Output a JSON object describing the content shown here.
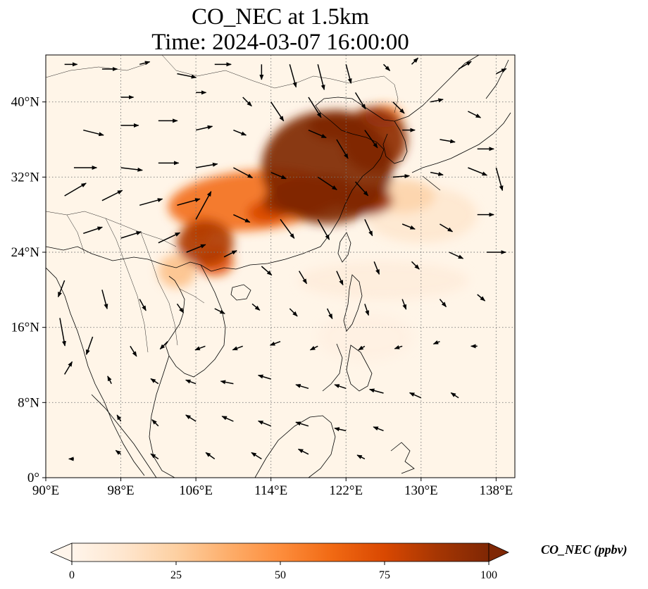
{
  "title": {
    "line1": "CO_NEC at 1.5km",
    "line2": "Time: 2024-03-07 16:00:00"
  },
  "map": {
    "lon_range": [
      90,
      140
    ],
    "lat_range": [
      0,
      45
    ],
    "lon_ticks": [
      {
        "value": 90,
        "label": "90°E"
      },
      {
        "value": 98,
        "label": "98°E"
      },
      {
        "value": 106,
        "label": "106°E"
      },
      {
        "value": 114,
        "label": "114°E"
      },
      {
        "value": 122,
        "label": "122°E"
      },
      {
        "value": 130,
        "label": "130°E"
      },
      {
        "value": 138,
        "label": "138°E"
      }
    ],
    "lat_ticks": [
      {
        "value": 0,
        "label": "0°"
      },
      {
        "value": 8,
        "label": "8°N"
      },
      {
        "value": 16,
        "label": "16°N"
      },
      {
        "value": 24,
        "label": "24°N"
      },
      {
        "value": 32,
        "label": "32°N"
      },
      {
        "value": 40,
        "label": "40°N"
      }
    ],
    "gridlines": "dotted",
    "background_color": "#fff5e8",
    "plumes": [
      {
        "lon": 112,
        "lat": 29.5,
        "rx": 9,
        "ry": 3.2,
        "value": 60,
        "rot": -5
      },
      {
        "lon": 120,
        "lat": 33,
        "rx": 7,
        "ry": 6,
        "value": 100,
        "rot": 0
      },
      {
        "lon": 121,
        "lat": 37.5,
        "rx": 3,
        "ry": 1.6,
        "value": 100,
        "rot": 0
      },
      {
        "lon": 125,
        "lat": 36,
        "rx": 3.5,
        "ry": 3.5,
        "value": 95,
        "rot": 0
      },
      {
        "lon": 118,
        "lat": 30,
        "rx": 5,
        "ry": 2,
        "value": 95,
        "rot": -10
      },
      {
        "lon": 124,
        "lat": 29.5,
        "rx": 3,
        "ry": 1.6,
        "value": 90,
        "rot": 0
      },
      {
        "lon": 107,
        "lat": 25,
        "rx": 3,
        "ry": 2.5,
        "value": 85,
        "rot": 0
      },
      {
        "lon": 108,
        "lat": 23,
        "rx": 2,
        "ry": 1.5,
        "value": 70,
        "rot": 0
      },
      {
        "lon": 106.5,
        "lat": 26.5,
        "rx": 1.2,
        "ry": 1.6,
        "value": 60,
        "rot": 0
      },
      {
        "lon": 113.5,
        "lat": 28.2,
        "rx": 2,
        "ry": 1.2,
        "value": 75,
        "rot": 0
      },
      {
        "lon": 126,
        "lat": 38.5,
        "rx": 2,
        "ry": 1.2,
        "value": 55,
        "rot": 0
      },
      {
        "lon": 128,
        "lat": 30,
        "rx": 3.5,
        "ry": 1.8,
        "value": 22,
        "rot": 0
      },
      {
        "lon": 130,
        "lat": 28,
        "rx": 6,
        "ry": 3,
        "value": 12,
        "rot": 0
      },
      {
        "lon": 104,
        "lat": 22,
        "rx": 2,
        "ry": 1.8,
        "value": 30,
        "rot": 0
      },
      {
        "lon": 126,
        "lat": 21,
        "rx": 9,
        "ry": 2,
        "value": 7,
        "rot": 0
      },
      {
        "lon": 124,
        "lat": 15,
        "rx": 5,
        "ry": 2.5,
        "value": 4,
        "rot": 0
      }
    ],
    "wind_vectors": [
      [
        92,
        44,
        1,
        0
      ],
      [
        96,
        43.5,
        1.2,
        0
      ],
      [
        100,
        44,
        0.8,
        0.2
      ],
      [
        104,
        43,
        1.5,
        -0.3
      ],
      [
        108,
        44,
        1.3,
        0
      ],
      [
        113,
        44,
        0,
        -1.2
      ],
      [
        116,
        44,
        0.5,
        -1.8
      ],
      [
        119,
        44,
        0.5,
        -2
      ],
      [
        122,
        44,
        0.4,
        -1.5
      ],
      [
        126,
        44,
        0.5,
        -0.5
      ],
      [
        129,
        44,
        0.5,
        0.5
      ],
      [
        134,
        43.5,
        1,
        0.6
      ],
      [
        138,
        43,
        0.8,
        0.4
      ],
      [
        98,
        40.5,
        1,
        0
      ],
      [
        106,
        41,
        0.8,
        0
      ],
      [
        111,
        40.5,
        0.7,
        -0.7
      ],
      [
        114,
        40,
        1,
        -1.5
      ],
      [
        118,
        40.5,
        1,
        -1.6
      ],
      [
        123,
        41,
        0.8,
        -1.3
      ],
      [
        127,
        40,
        0.9,
        -0.9
      ],
      [
        131,
        40,
        1,
        0.2
      ],
      [
        135,
        39,
        1,
        -0.5
      ],
      [
        94,
        37,
        1.6,
        -0.4
      ],
      [
        98,
        37.5,
        1.4,
        0
      ],
      [
        102,
        38,
        1.5,
        0
      ],
      [
        106,
        37,
        1.3,
        0.3
      ],
      [
        110,
        37,
        1,
        -0.4
      ],
      [
        118,
        37,
        1.4,
        -0.6
      ],
      [
        121,
        36,
        0.9,
        -1.5
      ],
      [
        124,
        37,
        1,
        -1.4
      ],
      [
        128,
        37,
        1,
        0
      ],
      [
        132,
        36,
        1.2,
        -0.2
      ],
      [
        136,
        35,
        1.3,
        0
      ],
      [
        93,
        33,
        1.8,
        0
      ],
      [
        98,
        33,
        1.7,
        -0.2
      ],
      [
        102,
        33.5,
        1.6,
        0
      ],
      [
        106,
        33,
        1.7,
        0.3
      ],
      [
        110,
        33,
        1.5,
        -0.8
      ],
      [
        114,
        32.5,
        1.2,
        -0.5
      ],
      [
        119,
        32,
        1.5,
        -1
      ],
      [
        123,
        31.5,
        1,
        -1.1
      ],
      [
        127,
        32,
        1.3,
        0.1
      ],
      [
        131,
        32.5,
        1,
        -0.2
      ],
      [
        135,
        33,
        1.5,
        -0.6
      ],
      [
        138,
        33,
        0.5,
        -1.8
      ],
      [
        92,
        30,
        1.7,
        1
      ],
      [
        96,
        29.5,
        1.6,
        0.8
      ],
      [
        100,
        29,
        1.8,
        0.5
      ],
      [
        104,
        29,
        1.8,
        0.5
      ],
      [
        106,
        27.5,
        1.2,
        2.2
      ],
      [
        110,
        28,
        1.3,
        -0.6
      ],
      [
        115,
        27.5,
        1.1,
        -1.5
      ],
      [
        119,
        27.5,
        0.9,
        -1.6
      ],
      [
        124,
        27.5,
        0.6,
        -1.3
      ],
      [
        128,
        27,
        1,
        -0.4
      ],
      [
        132,
        27,
        1,
        -0.6
      ],
      [
        136,
        28,
        1.3,
        0
      ],
      [
        94,
        26,
        1.5,
        0.5
      ],
      [
        98,
        25.5,
        1.6,
        0.5
      ],
      [
        102,
        25,
        1.7,
        0.8
      ],
      [
        105,
        24,
        1.5,
        0.6
      ],
      [
        109,
        23.5,
        1,
        0.5
      ],
      [
        113,
        22.5,
        0.8,
        -0.7
      ],
      [
        117,
        22,
        0.6,
        -1
      ],
      [
        121,
        22,
        0.5,
        -1.1
      ],
      [
        125,
        23,
        0.4,
        -1
      ],
      [
        129,
        23,
        0.6,
        -0.6
      ],
      [
        133,
        24,
        1.1,
        -0.5
      ],
      [
        137,
        24,
        1.5,
        0
      ],
      [
        92,
        21,
        -0.5,
        -1.3
      ],
      [
        96,
        20,
        0.4,
        -1.5
      ],
      [
        100,
        19,
        0.5,
        -0.9
      ],
      [
        104,
        18.5,
        0.5,
        -0.7
      ],
      [
        108,
        18,
        0.8,
        -0.4
      ],
      [
        112,
        18.5,
        0.6,
        -0.5
      ],
      [
        116,
        18,
        0.6,
        -0.6
      ],
      [
        120,
        18,
        0.4,
        -0.8
      ],
      [
        124,
        18.5,
        0.3,
        -0.9
      ],
      [
        128,
        19,
        0.3,
        -0.8
      ],
      [
        132,
        19,
        0.5,
        -0.6
      ],
      [
        136,
        19.5,
        0.6,
        -0.5
      ],
      [
        91.5,
        17,
        0.4,
        -2.2
      ],
      [
        95,
        15,
        -0.5,
        -1.4
      ],
      [
        99,
        14,
        0.5,
        -0.8
      ],
      [
        103,
        14.5,
        -0.6,
        -0.6
      ],
      [
        107,
        14,
        -0.8,
        -0.3
      ],
      [
        111,
        14,
        -0.8,
        -0.3
      ],
      [
        115,
        14.5,
        -0.8,
        -0.3
      ],
      [
        119,
        14,
        -0.6,
        -0.3
      ],
      [
        124,
        14,
        -0.5,
        -0.3
      ],
      [
        128,
        14,
        -0.6,
        -0.2
      ],
      [
        132,
        14.5,
        -0.5,
        -0.2
      ],
      [
        136,
        14,
        -0.5,
        0
      ],
      [
        92,
        11,
        0.6,
        1
      ],
      [
        97,
        10,
        -0.3,
        0.6
      ],
      [
        102,
        10,
        -0.6,
        0.4
      ],
      [
        106,
        10,
        -0.8,
        0.3
      ],
      [
        110,
        10,
        -1,
        0.2
      ],
      [
        114,
        10.5,
        -1,
        0.3
      ],
      [
        118,
        9.5,
        -1,
        0.3
      ],
      [
        122,
        9.5,
        -0.9,
        0.3
      ],
      [
        126,
        9,
        -1.1,
        0.3
      ],
      [
        130,
        8.5,
        -0.9,
        0.4
      ],
      [
        134,
        8.5,
        -0.6,
        0.4
      ],
      [
        98,
        6,
        -0.3,
        0.5
      ],
      [
        102,
        5.5,
        -0.5,
        0.5
      ],
      [
        106,
        6,
        -0.8,
        0.5
      ],
      [
        110,
        6,
        -0.9,
        0.4
      ],
      [
        114,
        5.5,
        -1,
        0.4
      ],
      [
        118,
        5.5,
        -1,
        0.3
      ],
      [
        122,
        5,
        -0.9,
        0.2
      ],
      [
        126,
        5,
        -0.8,
        0.3
      ],
      [
        93,
        2,
        -0.4,
        0
      ],
      [
        98,
        2.5,
        -0.4,
        0.3
      ],
      [
        102,
        2,
        -0.6,
        0.4
      ],
      [
        108,
        2,
        -0.7,
        0.5
      ],
      [
        113,
        2,
        -0.8,
        0.5
      ],
      [
        118,
        2.5,
        -0.8,
        0.4
      ],
      [
        124,
        2,
        -0.6,
        0.3
      ]
    ]
  },
  "colorbar": {
    "min": 0,
    "max": 100,
    "extend": "both",
    "colors": [
      "#fff5eb",
      "#fee6ce",
      "#fdd0a2",
      "#fdae6b",
      "#fd8d3c",
      "#f16913",
      "#d94801",
      "#a63603",
      "#7f2704"
    ],
    "ticks": [
      {
        "value": 0,
        "label": "0"
      },
      {
        "value": 25,
        "label": "25"
      },
      {
        "value": 50,
        "label": "50"
      },
      {
        "value": 75,
        "label": "75"
      },
      {
        "value": 100,
        "label": "100"
      }
    ],
    "label": "CO_NEC (ppbv)"
  }
}
